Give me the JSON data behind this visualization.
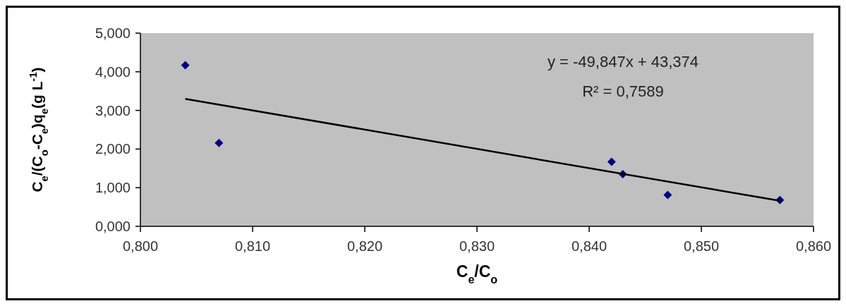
{
  "chart_data": {
    "type": "scatter",
    "xlabel": "C$_{e}$/C$_{o}$",
    "ylabel": "C$_{e}$/(C$_{o}$-C$_{e}$)q$_{e}$(g L$^{-1}$)",
    "xlim": [
      0.8,
      0.86
    ],
    "xticks": [
      {
        "value": 0.8,
        "label": "0,800"
      },
      {
        "value": 0.81,
        "label": "0,810"
      },
      {
        "value": 0.82,
        "label": "0,820"
      },
      {
        "value": 0.83,
        "label": "0,830"
      },
      {
        "value": 0.84,
        "label": "0,840"
      },
      {
        "value": 0.85,
        "label": "0,850"
      },
      {
        "value": 0.86,
        "label": "0,860"
      }
    ],
    "ylim": [
      0,
      5
    ],
    "yticks": [
      {
        "value": 0,
        "label": "0,000"
      },
      {
        "value": 1,
        "label": "1,000"
      },
      {
        "value": 2,
        "label": "2,000"
      },
      {
        "value": 3,
        "label": "3,000"
      },
      {
        "value": 4,
        "label": "4,000"
      },
      {
        "value": 5,
        "label": "5,000"
      }
    ],
    "grid": false,
    "series": [
      {
        "color": "#000080",
        "marker": "diamond",
        "x": [
          0.804,
          0.807,
          0.842,
          0.843,
          0.847,
          0.857
        ],
        "values": [
          4.17,
          2.16,
          1.67,
          1.35,
          0.81,
          0.68
        ]
      },
      {
        "type": "line",
        "color": "#000000",
        "marker": "none",
        "line_style": "solid",
        "x": [
          0.804,
          0.857
        ],
        "values": [
          3.3,
          0.66
        ]
      }
    ],
    "annotations": [
      "y = -49,847x + 43,374",
      "R² = 0,7589"
    ]
  }
}
